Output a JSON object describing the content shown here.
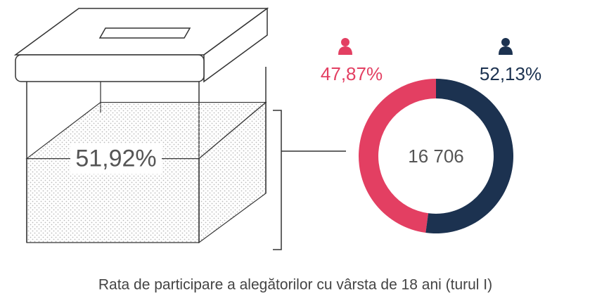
{
  "chart_data": {
    "type": "pie",
    "title": "Rata de participare a alegătorilor cu vârsta de 18 ani (turul I)",
    "values": [
      47.87,
      52.13
    ],
    "value_labels": [
      "47,87%",
      "52,13%"
    ],
    "colors": [
      "#e33f62",
      "#1c3250"
    ],
    "center_label": "16 706",
    "turnout": {
      "value": 51.92,
      "label": "51,92%"
    }
  }
}
